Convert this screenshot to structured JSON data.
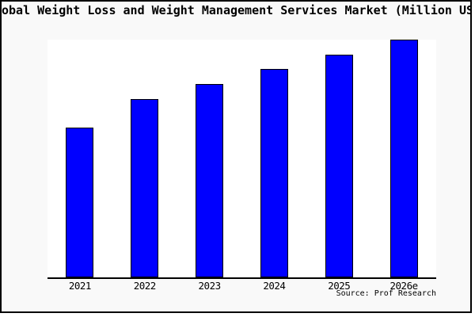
{
  "window": {
    "canvas_background": "#ffffff",
    "frame_background": "#f9f9f9",
    "frame_border_color": "#000000"
  },
  "chart_data": {
    "type": "bar",
    "title_visible": "obal Weight Loss and Weight Management Services Market (Million USD",
    "categories": [
      "2021",
      "2022",
      "2023",
      "2024",
      "2025",
      "2026e"
    ],
    "values": [
      63.1,
      75.1,
      81.4,
      87.7,
      93.7,
      100.0
    ],
    "ylim": [
      0,
      100
    ],
    "xlabel": "",
    "ylabel": "",
    "y_axis_labels_visible": false,
    "gridlines": false,
    "legend": false,
    "bar_fill_color": "#0000ff",
    "bar_border_color": "#000000",
    "axis_line_color": "#000000",
    "source_note": "Source: Prof Research"
  }
}
